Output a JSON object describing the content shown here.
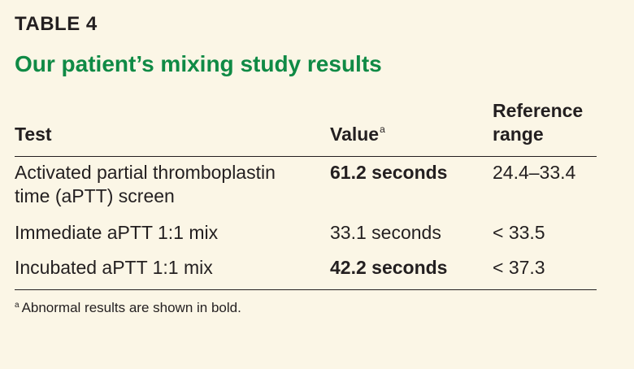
{
  "table_label": "TABLE 4",
  "title": "Our patient’s mixing study results",
  "headers": {
    "test": "Test",
    "value": "Value",
    "value_footnote_mark": "a",
    "reference_line1": "Reference",
    "reference_line2": "range"
  },
  "rows": [
    {
      "test_line1": "Activated partial thromboplastin",
      "test_line2": "time (aPTT) screen",
      "value": "61.2 seconds",
      "value_bold": true,
      "reference": "24.4–33.4"
    },
    {
      "test_line1": "Immediate aPTT 1:1 mix",
      "value": "33.1 seconds",
      "value_bold": false,
      "reference": "< 33.5"
    },
    {
      "test_line1": "Incubated aPTT 1:1 mix",
      "value": "42.2 seconds",
      "value_bold": true,
      "reference": "< 37.3"
    }
  ],
  "footnote": {
    "mark": "a",
    "text": "Abnormal results are shown in bold."
  },
  "colors": {
    "background": "#fbf6e6",
    "title": "#0f8a45",
    "text": "#231f20"
  }
}
